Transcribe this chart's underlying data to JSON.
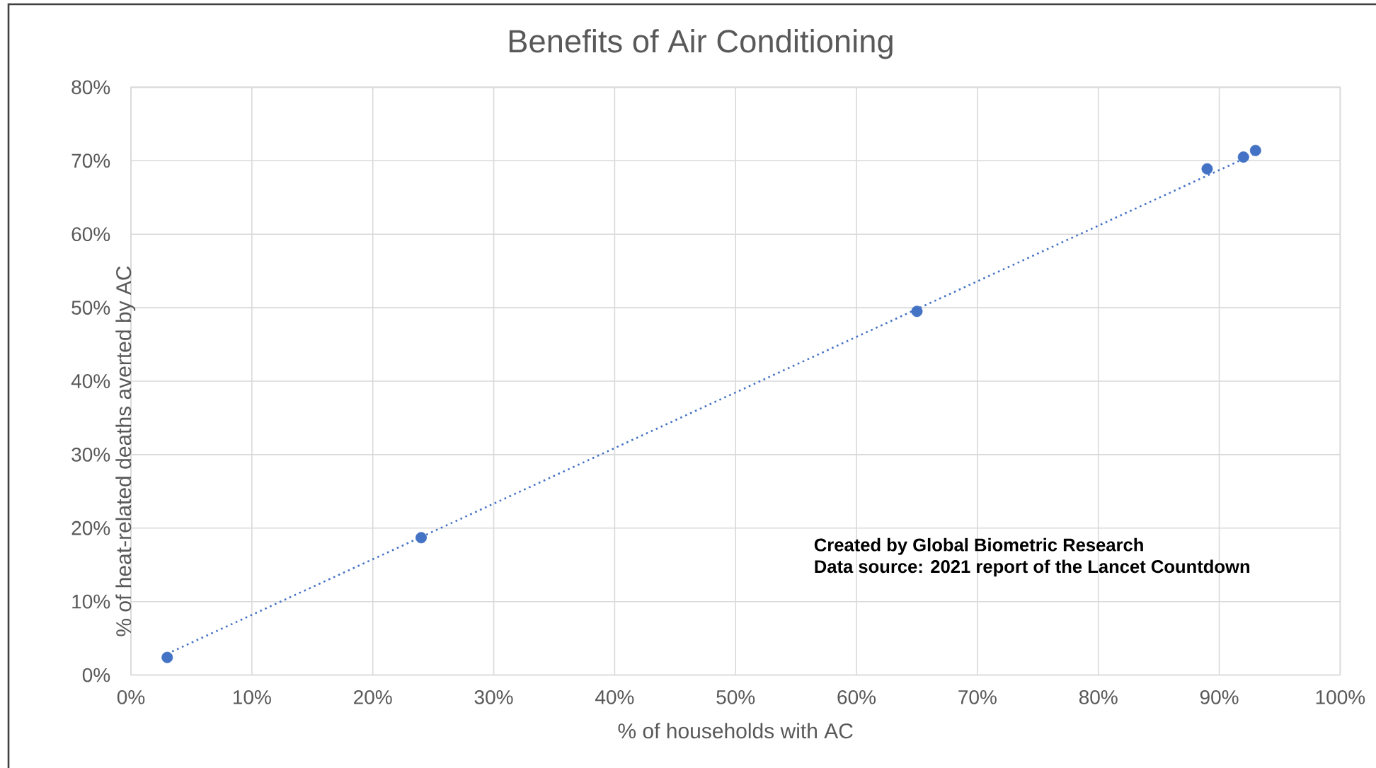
{
  "chart_data": {
    "type": "scatter",
    "title": "Benefits of Air Conditioning",
    "xlabel": "% of households with AC",
    "ylabel": "% of heat-related deaths averted by AC",
    "x": [
      3,
      24,
      65,
      89,
      92,
      93
    ],
    "series": [
      {
        "color": "#4472c4",
        "marker": "circle",
        "values": [
          2.4,
          18.7,
          49.5,
          68.9,
          70.5,
          71.4
        ]
      },
      {
        "type": "line",
        "color": "#4472c4",
        "marker": "none",
        "line_style": "dotted",
        "x": [
          3,
          93
        ],
        "values": [
          2.9,
          71.0
        ]
      }
    ],
    "xlim": [
      0,
      100
    ],
    "ylim": [
      0,
      80
    ],
    "xticks": [
      {
        "value": 0,
        "label": "0%"
      },
      {
        "value": 10,
        "label": "10%"
      },
      {
        "value": 20,
        "label": "20%"
      },
      {
        "value": 30,
        "label": "30%"
      },
      {
        "value": 40,
        "label": "40%"
      },
      {
        "value": 50,
        "label": "50%"
      },
      {
        "value": 60,
        "label": "60%"
      },
      {
        "value": 70,
        "label": "70%"
      },
      {
        "value": 80,
        "label": "80%"
      },
      {
        "value": 90,
        "label": "90%"
      },
      {
        "value": 100,
        "label": "100%"
      }
    ],
    "yticks": [
      {
        "value": 0,
        "label": "0%"
      },
      {
        "value": 10,
        "label": "10%"
      },
      {
        "value": 20,
        "label": "20%"
      },
      {
        "value": 30,
        "label": "30%"
      },
      {
        "value": 40,
        "label": "40%"
      },
      {
        "value": 50,
        "label": "50%"
      },
      {
        "value": 60,
        "label": "60%"
      },
      {
        "value": 70,
        "label": "70%"
      },
      {
        "value": 80,
        "label": "80%"
      }
    ],
    "grid": true,
    "legend": false,
    "annotations": [
      "Created by Global Biometric Research",
      "Data source: 2021 report of the Lancet Countdown"
    ]
  }
}
